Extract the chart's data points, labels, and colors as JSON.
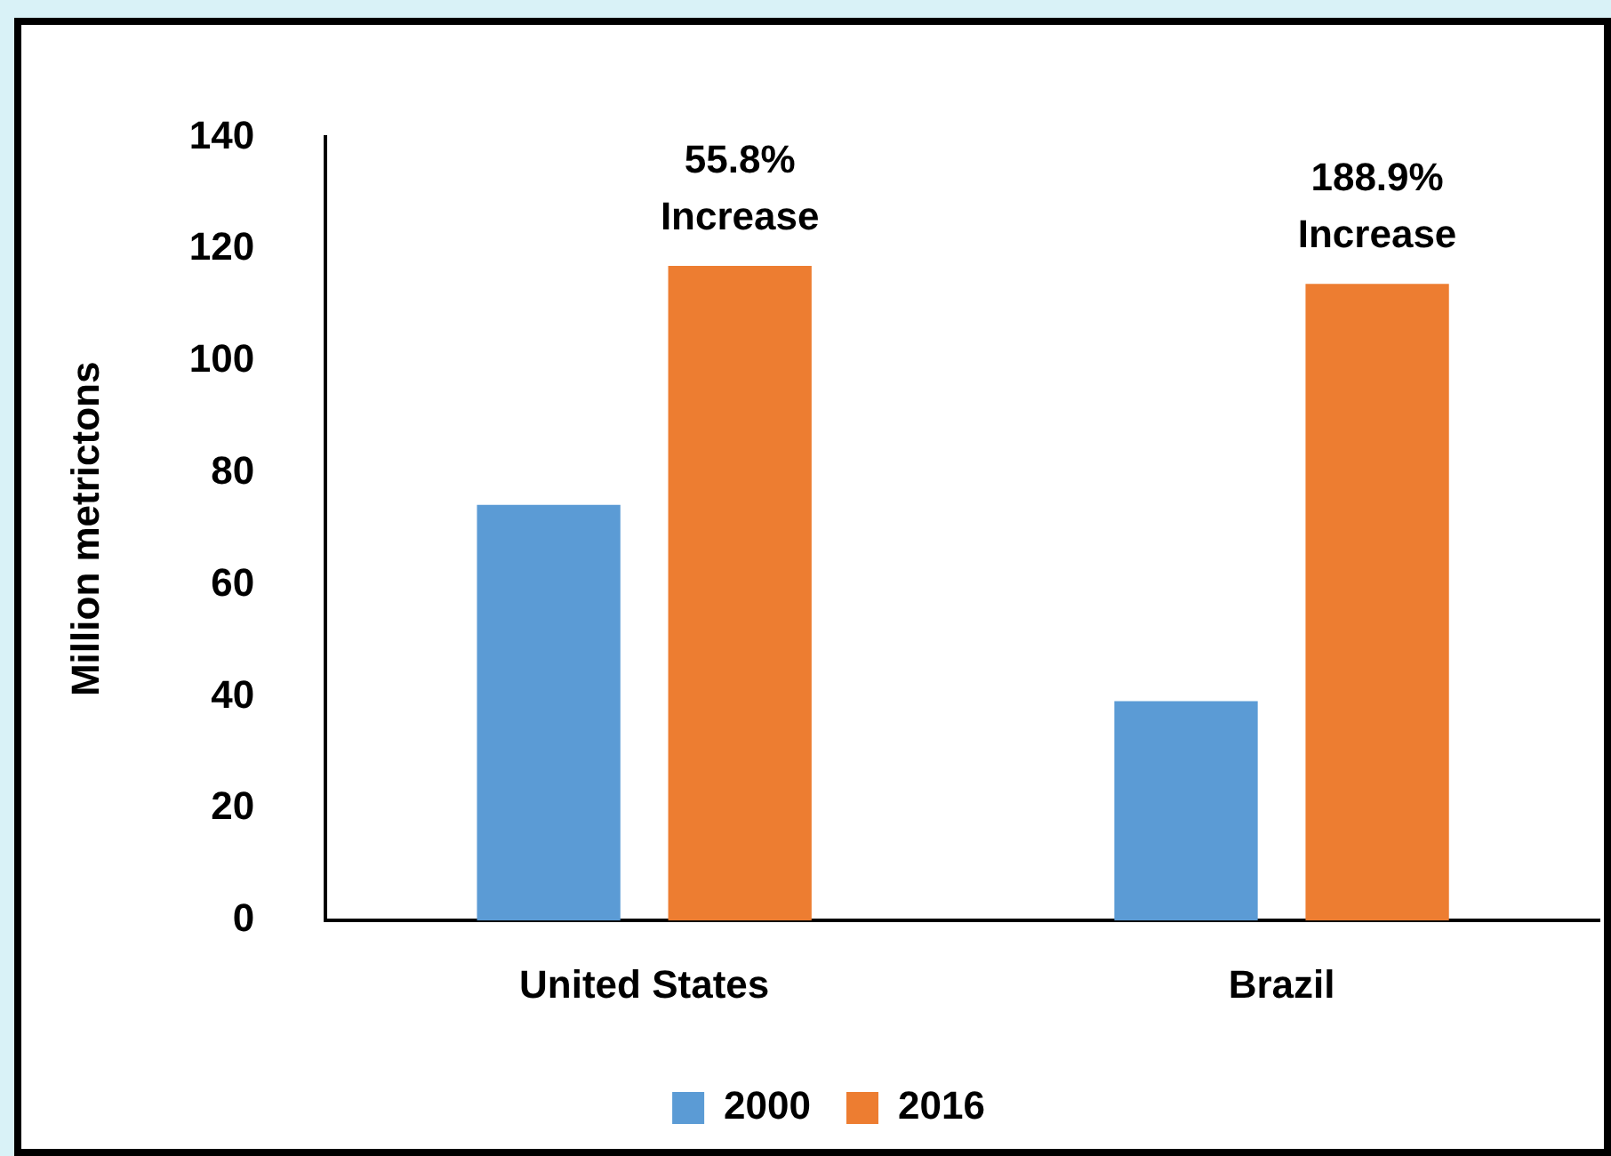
{
  "chart_data": {
    "type": "bar",
    "ylabel": "Million metrictons",
    "categories": [
      "United States",
      "Brazil"
    ],
    "series": [
      {
        "name": "2000",
        "color": "#5b9bd5",
        "values": [
          74.3,
          39.2
        ]
      },
      {
        "name": "2016",
        "color": "#ed7d31",
        "values": [
          117,
          113.8
        ]
      }
    ],
    "ylim": [
      0,
      140
    ],
    "yticks": [
      0,
      20,
      40,
      60,
      80,
      100,
      120,
      140
    ],
    "grid": false,
    "legend": "bottom",
    "annotations": [
      "55.8% Increase",
      "188.9% Increase"
    ]
  }
}
